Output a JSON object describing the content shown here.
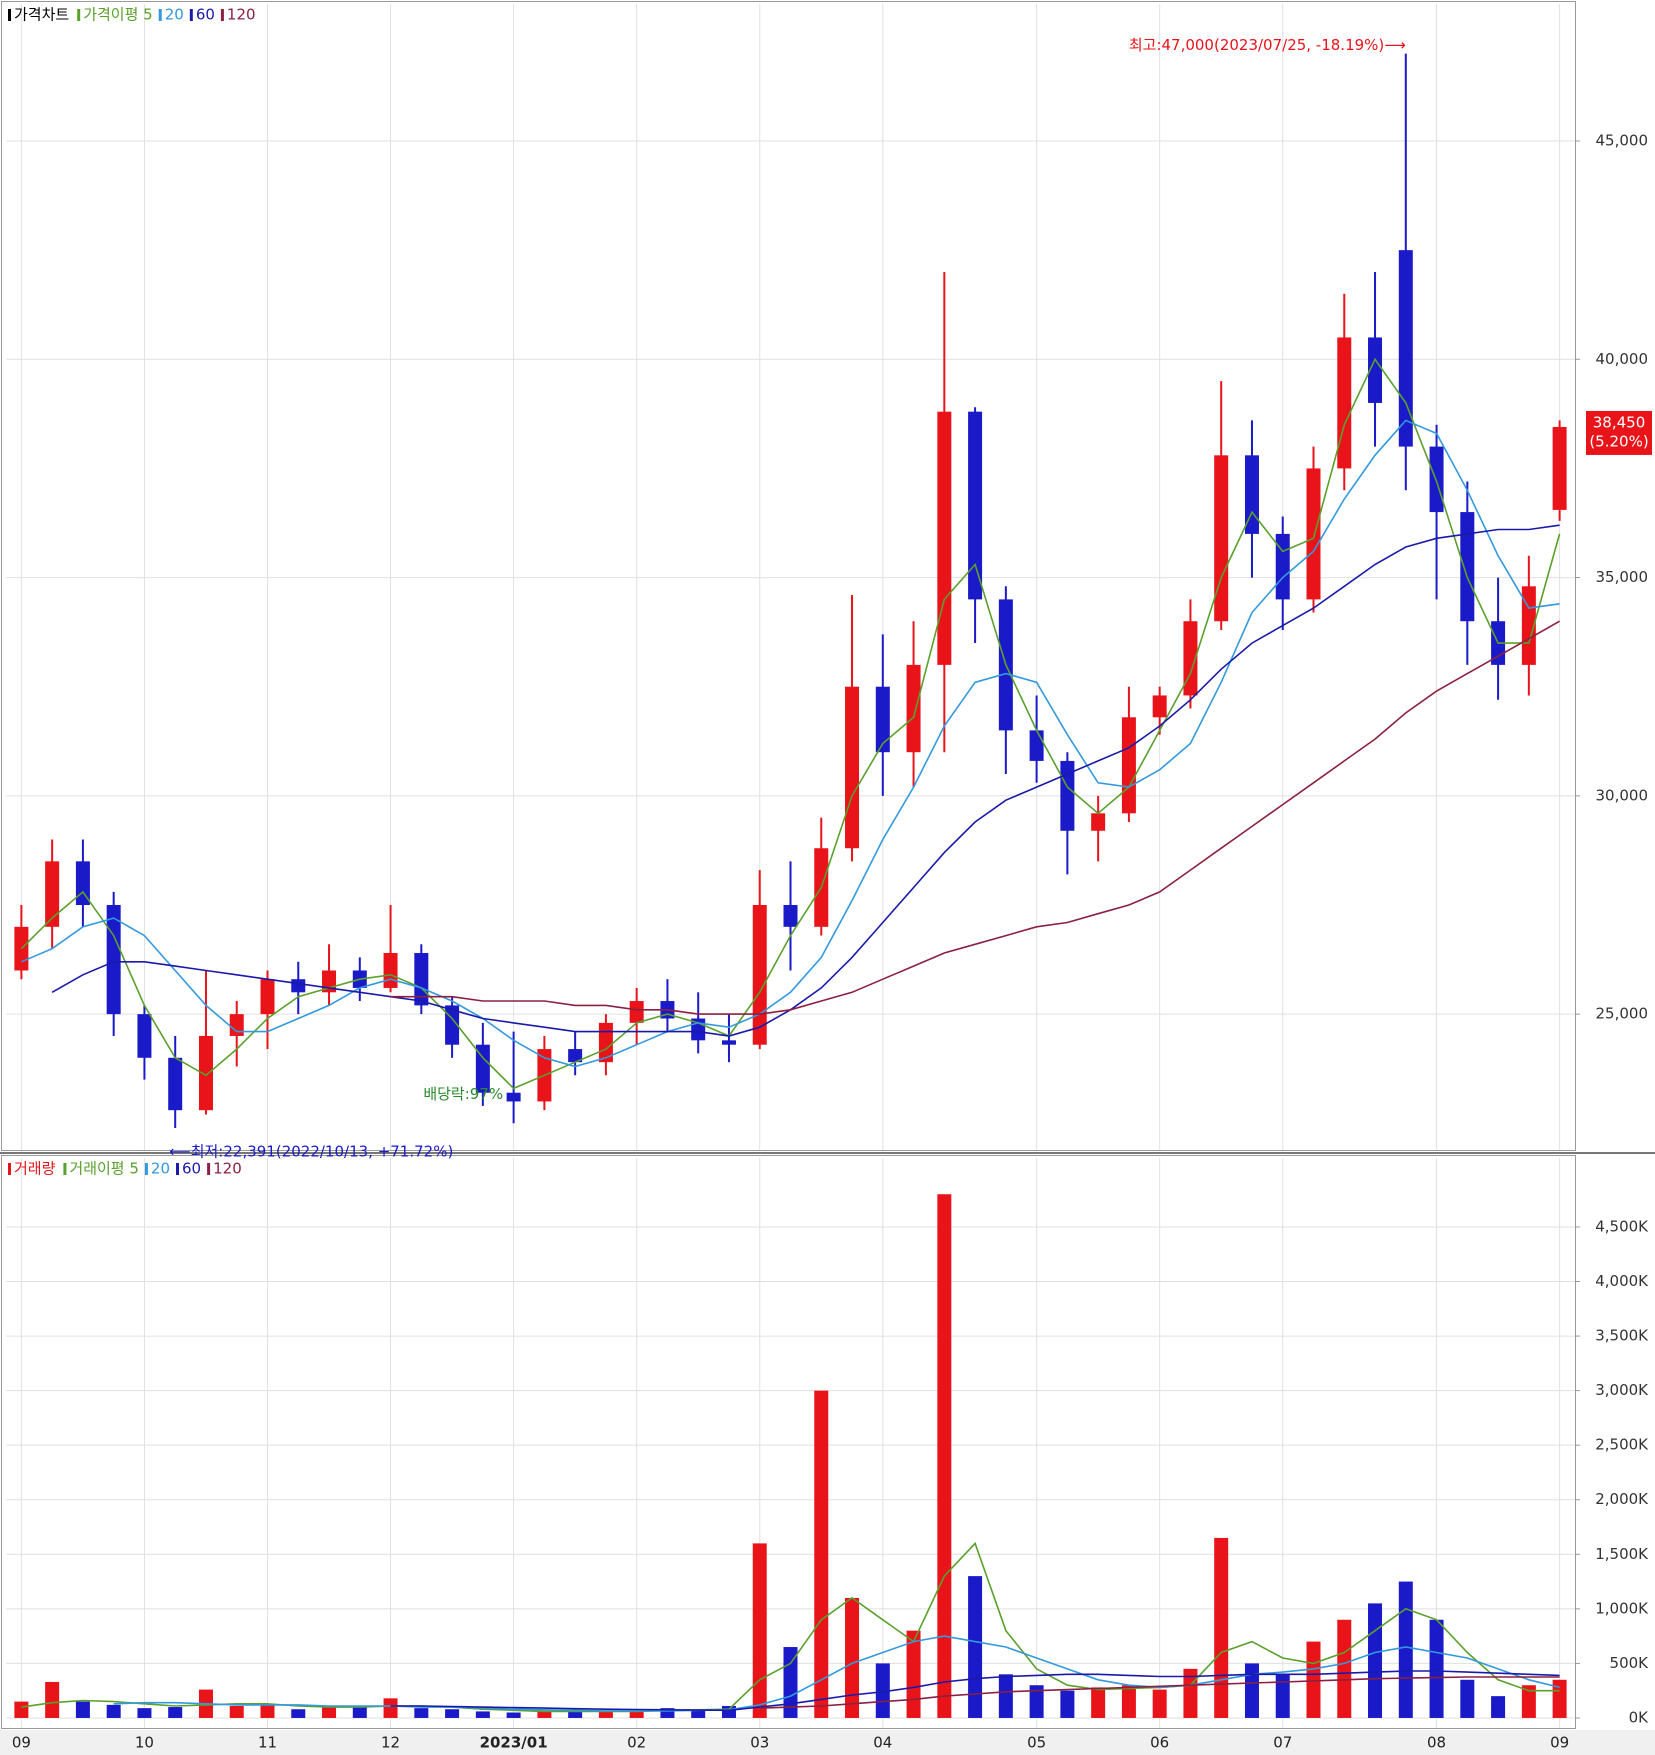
{
  "chart_data": [
    {
      "type": "candlestick",
      "legend_title": "가격차트",
      "ma_label": "가격이평 5",
      "up_color": "#e8141a",
      "down_color": "#1a1ac8",
      "open": [
        26000,
        27000,
        28500,
        27500,
        25000,
        24000,
        22800,
        24500,
        25000,
        25800,
        25500,
        26000,
        25600,
        26400,
        25200,
        24300,
        23200,
        23000,
        24200,
        23900,
        24800,
        25300,
        24900,
        24400,
        24300,
        27500,
        27000,
        28800,
        32500,
        31000,
        33000,
        38800,
        34500,
        31500,
        30800,
        29200,
        29600,
        31800,
        32300,
        34000,
        37800,
        36000,
        34500,
        37500,
        40500,
        42500,
        38000,
        36500,
        34000,
        33000,
        36550
      ],
      "high": [
        27500,
        29000,
        29000,
        27800,
        25200,
        24500,
        26000,
        25300,
        26000,
        26200,
        26600,
        26300,
        27500,
        26600,
        25400,
        24800,
        24600,
        24500,
        24600,
        25000,
        25600,
        25800,
        25500,
        25000,
        28300,
        28500,
        29500,
        34600,
        33700,
        34000,
        42000,
        38900,
        34800,
        32300,
        31000,
        30000,
        32500,
        32500,
        34500,
        39500,
        38600,
        36400,
        38000,
        41500,
        42000,
        47000,
        38500,
        37200,
        35000,
        35500,
        38600
      ],
      "low": [
        25800,
        26500,
        27000,
        24500,
        23500,
        22391,
        22700,
        23800,
        24200,
        25000,
        25200,
        25300,
        25500,
        25000,
        24000,
        22900,
        22500,
        22800,
        23600,
        23600,
        24300,
        24600,
        24100,
        23900,
        24200,
        26000,
        26800,
        28500,
        30000,
        30200,
        31000,
        33500,
        30500,
        30300,
        28200,
        28500,
        29400,
        31400,
        32000,
        33800,
        35000,
        33800,
        34200,
        37000,
        38000,
        37000,
        34500,
        33000,
        32200,
        32300,
        36300
      ],
      "close": [
        27000,
        28500,
        27500,
        25000,
        24000,
        22800,
        24500,
        25000,
        25800,
        25500,
        26000,
        25600,
        26400,
        25200,
        24300,
        23200,
        23000,
        24200,
        23900,
        24800,
        25300,
        24900,
        24400,
        24300,
        27500,
        27000,
        28800,
        32500,
        31000,
        33000,
        38800,
        34500,
        31500,
        30800,
        29200,
        29600,
        31800,
        32300,
        34000,
        37800,
        36000,
        34500,
        37500,
        40500,
        39000,
        38000,
        36500,
        34000,
        33000,
        34800,
        38450
      ],
      "series": [
        {
          "name": "5",
          "color": "#5aa02c",
          "values": [
            26500,
            27200,
            27800,
            26800,
            25200,
            24000,
            23600,
            24200,
            24900,
            25400,
            25600,
            25800,
            25900,
            25600,
            24900,
            24000,
            23300,
            23600,
            23900,
            24200,
            24800,
            25000,
            24800,
            24500,
            25500,
            26800,
            27900,
            30000,
            31200,
            31800,
            34500,
            35300,
            33000,
            31500,
            30200,
            29600,
            30200,
            31500,
            32800,
            35000,
            36500,
            35600,
            35900,
            38500,
            40000,
            39000,
            37200,
            35000,
            33500,
            33500,
            36000
          ]
        },
        {
          "name": "20",
          "color": "#3399dd",
          "values": [
            26200,
            26500,
            27000,
            27200,
            26800,
            26000,
            25200,
            24600,
            24600,
            24900,
            25200,
            25600,
            25800,
            25600,
            25300,
            24900,
            24400,
            24000,
            23800,
            24000,
            24300,
            24600,
            24800,
            24700,
            25000,
            25500,
            26300,
            27600,
            29000,
            30200,
            31600,
            32600,
            32800,
            32600,
            31400,
            30300,
            30200,
            30600,
            31200,
            32600,
            34200,
            35000,
            35600,
            36800,
            37800,
            38600,
            38300,
            37000,
            35500,
            34300,
            34400
          ]
        },
        {
          "name": "60",
          "color": "#1a1aaa",
          "values": [
            null,
            25500,
            25900,
            26200,
            26200,
            26100,
            26000,
            25900,
            25800,
            25700,
            25600,
            25500,
            25400,
            25300,
            25100,
            24900,
            24800,
            24700,
            24600,
            24600,
            24600,
            24600,
            24600,
            24500,
            24700,
            25100,
            25600,
            26300,
            27100,
            27900,
            28700,
            29400,
            29900,
            30200,
            30500,
            30800,
            31100,
            31600,
            32200,
            32900,
            33500,
            33900,
            34300,
            34800,
            35300,
            35700,
            35900,
            36000,
            36100,
            36100,
            36200
          ]
        },
        {
          "name": "120",
          "color": "#8b2040",
          "values": [
            null,
            null,
            null,
            null,
            null,
            null,
            null,
            null,
            null,
            null,
            null,
            null,
            25400,
            25400,
            25400,
            25300,
            25300,
            25300,
            25200,
            25200,
            25100,
            25100,
            25000,
            25000,
            25000,
            25100,
            25300,
            25500,
            25800,
            26100,
            26400,
            26600,
            26800,
            27000,
            27100,
            27300,
            27500,
            27800,
            28300,
            28800,
            29300,
            29800,
            30300,
            30800,
            31300,
            31900,
            32400,
            32800,
            33200,
            33600,
            34000
          ]
        }
      ],
      "ylim": [
        21888,
        48138
      ],
      "yticks": [
        {
          "value": 25000,
          "label": "25,000"
        },
        {
          "value": 30000,
          "label": "30,000"
        },
        {
          "value": 35000,
          "label": "35,000"
        },
        {
          "value": 40000,
          "label": "40,000"
        },
        {
          "value": 45000,
          "label": "45,000"
        }
      ],
      "annotations": [
        "최고:47,000(2023/07/25, -18.19%)⟶",
        "⟵최저:22,391(2022/10/13, +71.72%)",
        "배당락:97%"
      ],
      "last_label": "38,450",
      "last_change": "(5.20%)",
      "grid": true
    },
    {
      "type": "bar",
      "legend_title": "거래량",
      "ma_label": "거래이평 5",
      "categories": [
        "09",
        null,
        null,
        null,
        "10",
        null,
        null,
        null,
        "11",
        null,
        null,
        null,
        "12",
        null,
        null,
        null,
        "2023/01",
        null,
        null,
        null,
        "02",
        null,
        null,
        null,
        "03",
        null,
        null,
        null,
        "04",
        null,
        null,
        null,
        null,
        "05",
        null,
        null,
        null,
        "06",
        null,
        null,
        null,
        "07",
        null,
        null,
        null,
        null,
        "08",
        null,
        null,
        null,
        "09"
      ],
      "values": [
        150,
        330,
        150,
        120,
        90,
        100,
        260,
        110,
        130,
        80,
        100,
        110,
        180,
        90,
        80,
        60,
        50,
        60,
        60,
        60,
        70,
        90,
        70,
        110,
        1600,
        650,
        3000,
        1100,
        500,
        800,
        4800,
        1300,
        400,
        300,
        250,
        280,
        300,
        260,
        450,
        1650,
        500,
        400,
        700,
        900,
        1050,
        1250,
        900,
        350,
        200,
        300,
        350
      ],
      "series": [
        {
          "name": "5",
          "color": "#5aa02c",
          "values": [
            100,
            140,
            160,
            150,
            130,
            110,
            120,
            130,
            130,
            110,
            100,
            100,
            110,
            110,
            100,
            80,
            70,
            60,
            60,
            60,
            60,
            70,
            75,
            80,
            350,
            500,
            900,
            1100,
            900,
            700,
            1300,
            1600,
            800,
            450,
            300,
            260,
            270,
            280,
            300,
            600,
            700,
            550,
            500,
            600,
            800,
            1000,
            900,
            600,
            350,
            250,
            250
          ]
        },
        {
          "name": "20",
          "color": "#3399dd",
          "values": [
            null,
            null,
            null,
            130,
            140,
            140,
            130,
            120,
            120,
            120,
            110,
            110,
            110,
            100,
            100,
            90,
            80,
            75,
            70,
            65,
            65,
            65,
            70,
            75,
            120,
            200,
            350,
            500,
            600,
            700,
            750,
            700,
            650,
            550,
            450,
            350,
            300,
            280,
            300,
            350,
            400,
            420,
            450,
            500,
            600,
            650,
            600,
            550,
            450,
            350,
            280
          ]
        },
        {
          "name": "60",
          "color": "#1a1aaa",
          "values": [
            null,
            null,
            null,
            null,
            null,
            null,
            null,
            null,
            null,
            null,
            null,
            null,
            110,
            110,
            105,
            100,
            95,
            90,
            85,
            80,
            78,
            75,
            72,
            70,
            100,
            130,
            170,
            210,
            240,
            280,
            330,
            360,
            380,
            390,
            400,
            400,
            390,
            380,
            380,
            390,
            400,
            400,
            400,
            410,
            420,
            430,
            430,
            420,
            410,
            400,
            390
          ]
        },
        {
          "name": "120",
          "color": "#8b2040",
          "values": [
            null,
            null,
            null,
            null,
            null,
            null,
            null,
            null,
            null,
            null,
            null,
            null,
            null,
            null,
            null,
            null,
            null,
            null,
            null,
            null,
            null,
            null,
            null,
            null,
            90,
            100,
            110,
            130,
            150,
            170,
            200,
            220,
            240,
            250,
            260,
            270,
            280,
            290,
            300,
            310,
            320,
            330,
            340,
            350,
            360,
            365,
            370,
            375,
            375,
            375,
            375
          ]
        }
      ],
      "ylim": [
        -92,
        5132
      ],
      "yticks": [
        {
          "value": 0,
          "label": "0K"
        },
        {
          "value": 500,
          "label": "500K"
        },
        {
          "value": 1000,
          "label": "1,000K"
        },
        {
          "value": 1500,
          "label": "1,500K"
        },
        {
          "value": 2000,
          "label": "2,000K"
        },
        {
          "value": 2500,
          "label": "2,500K"
        },
        {
          "value": 3000,
          "label": "3,000K"
        },
        {
          "value": 3500,
          "label": "3,500K"
        },
        {
          "value": 4000,
          "label": "4,000K"
        },
        {
          "value": 4500,
          "label": "4,500K"
        }
      ],
      "grid": true
    }
  ]
}
